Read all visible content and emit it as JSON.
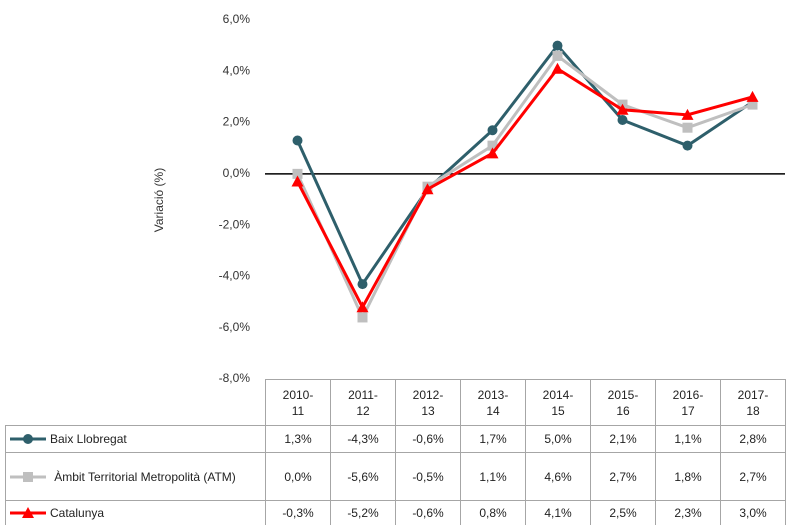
{
  "chart_data": {
    "type": "line",
    "y_label": "Variació (%)",
    "categories": [
      "2010-\n11",
      "2011-\n12",
      "2012-\n13",
      "2013-\n14",
      "2014-\n15",
      "2015-\n16",
      "2016-\n17",
      "2017-\n18"
    ],
    "ylim": [
      -8,
      6
    ],
    "yticks": [
      {
        "value": -8,
        "label": "-8,0%"
      },
      {
        "value": -6,
        "label": "-6,0%"
      },
      {
        "value": -4,
        "label": "-4,0%"
      },
      {
        "value": -2,
        "label": "-2,0%"
      },
      {
        "value": 0,
        "label": "0,0%"
      },
      {
        "value": 2,
        "label": "2,0%"
      },
      {
        "value": 4,
        "label": "4,0%"
      },
      {
        "value": 6,
        "label": "6,0%"
      }
    ],
    "series": [
      {
        "name": "Baix Llobregat",
        "color": "#2e5f6b",
        "marker": "circle",
        "values": [
          1.3,
          -4.3,
          -0.6,
          1.7,
          5.0,
          2.1,
          1.1,
          2.8
        ],
        "value_labels": [
          "1,3%",
          "-4,3%",
          "-0,6%",
          "1,7%",
          "5,0%",
          "2,1%",
          "1,1%",
          "2,8%"
        ]
      },
      {
        "name": "Àmbit Territorial Metropolità (ATM)",
        "color": "#bfbfbf",
        "marker": "square",
        "values": [
          0.0,
          -5.6,
          -0.5,
          1.1,
          4.6,
          2.7,
          1.8,
          2.7
        ],
        "value_labels": [
          "0,0%",
          "-5,6%",
          "-0,5%",
          "1,1%",
          "4,6%",
          "2,7%",
          "1,8%",
          "2,7%"
        ]
      },
      {
        "name": "Catalunya",
        "color": "#ff0000",
        "marker": "triangle",
        "values": [
          -0.3,
          -5.2,
          -0.6,
          0.8,
          4.1,
          2.5,
          2.3,
          3.0
        ],
        "value_labels": [
          "-0,3%",
          "-5,2%",
          "-0,6%",
          "0,8%",
          "4,1%",
          "2,5%",
          "2,3%",
          "3,0%"
        ]
      }
    ]
  }
}
